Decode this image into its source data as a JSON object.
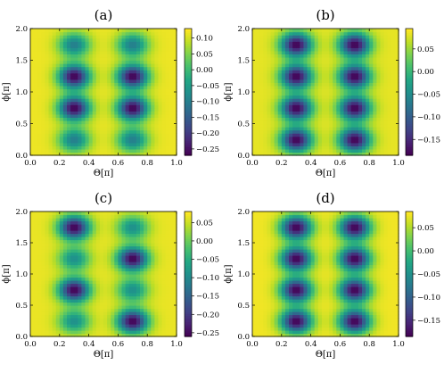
{
  "figure": {
    "colormap": "viridis",
    "panels": [
      {
        "title": "(a)"
      },
      {
        "title": "(b)"
      },
      {
        "title": "(c)"
      },
      {
        "title": "(d)"
      }
    ]
  },
  "chart_data": [
    {
      "type": "heatmap",
      "title": "(a)",
      "xlabel": "Θ[π]",
      "ylabel": "ϕ[π]",
      "xlim": [
        0.0,
        1.0
      ],
      "ylim": [
        0.0,
        2.0
      ],
      "xticks": [
        "0.0",
        "0.2",
        "0.4",
        "0.6",
        "0.8",
        "1.0"
      ],
      "yticks": [
        "0.0",
        "0.5",
        "1.0",
        "1.5",
        "2.0"
      ],
      "colorbar": {
        "min": -0.27,
        "max": 0.13,
        "ticks": [
          0.1,
          0.05,
          0.0,
          -0.05,
          -0.1,
          -0.15,
          -0.2,
          -0.25
        ],
        "tick_labels": [
          "0.10",
          "0.05",
          "0.00",
          "−0.05",
          "−0.10",
          "−0.15",
          "−0.20",
          "−0.25"
        ]
      },
      "field": {
        "background": 0.12,
        "blobs": [
          {
            "theta": 0.3,
            "phi": 0.25,
            "value": -0.1
          },
          {
            "theta": 0.7,
            "phi": 0.25,
            "value": -0.1
          },
          {
            "theta": 0.3,
            "phi": 0.75,
            "value": -0.27
          },
          {
            "theta": 0.7,
            "phi": 0.75,
            "value": -0.27
          },
          {
            "theta": 0.3,
            "phi": 1.25,
            "value": -0.27
          },
          {
            "theta": 0.7,
            "phi": 1.25,
            "value": -0.27
          },
          {
            "theta": 0.3,
            "phi": 1.75,
            "value": -0.1
          },
          {
            "theta": 0.7,
            "phi": 1.75,
            "value": -0.1
          }
        ]
      }
    },
    {
      "type": "heatmap",
      "title": "(b)",
      "xlabel": "Θ[π]",
      "ylabel": "ϕ[π]",
      "xlim": [
        0.0,
        1.0
      ],
      "ylim": [
        0.0,
        2.0
      ],
      "xticks": [
        "0.0",
        "0.2",
        "0.4",
        "0.6",
        "0.8",
        "1.0"
      ],
      "yticks": [
        "0.0",
        "0.5",
        "1.0",
        "1.5",
        "2.0"
      ],
      "colorbar": {
        "min": -0.185,
        "max": 0.095,
        "ticks": [
          0.05,
          0.0,
          -0.05,
          -0.1,
          -0.15
        ],
        "tick_labels": [
          "0.05",
          "0.00",
          "−0.05",
          "−0.10",
          "−0.15"
        ]
      },
      "field": {
        "background": 0.085,
        "blobs": [
          {
            "theta": 0.3,
            "phi": 0.25,
            "value": -0.185
          },
          {
            "theta": 0.7,
            "phi": 0.25,
            "value": -0.185
          },
          {
            "theta": 0.3,
            "phi": 0.75,
            "value": -0.185
          },
          {
            "theta": 0.7,
            "phi": 0.75,
            "value": -0.185
          },
          {
            "theta": 0.3,
            "phi": 1.25,
            "value": -0.185
          },
          {
            "theta": 0.7,
            "phi": 1.25,
            "value": -0.185
          },
          {
            "theta": 0.3,
            "phi": 1.75,
            "value": -0.185
          },
          {
            "theta": 0.7,
            "phi": 1.75,
            "value": -0.185
          }
        ]
      }
    },
    {
      "type": "heatmap",
      "title": "(c)",
      "xlabel": "Θ[π]",
      "ylabel": "ϕ[π]",
      "xlim": [
        0.0,
        1.0
      ],
      "ylim": [
        0.0,
        2.0
      ],
      "xticks": [
        "0.0",
        "0.2",
        "0.4",
        "0.6",
        "0.8",
        "1.0"
      ],
      "yticks": [
        "0.0",
        "0.5",
        "1.0",
        "1.5",
        "2.0"
      ],
      "colorbar": {
        "min": -0.26,
        "max": 0.08,
        "ticks": [
          0.05,
          0.0,
          -0.05,
          -0.1,
          -0.15,
          -0.2,
          -0.25
        ],
        "tick_labels": [
          "0.05",
          "0.00",
          "−0.05",
          "−0.10",
          "−0.15",
          "−0.20",
          "−0.25"
        ]
      },
      "field": {
        "background": 0.07,
        "blobs": [
          {
            "theta": 0.3,
            "phi": 0.25,
            "value": -0.09
          },
          {
            "theta": 0.7,
            "phi": 0.25,
            "value": -0.26
          },
          {
            "theta": 0.3,
            "phi": 0.75,
            "value": -0.26
          },
          {
            "theta": 0.7,
            "phi": 0.75,
            "value": -0.09
          },
          {
            "theta": 0.3,
            "phi": 1.25,
            "value": -0.09
          },
          {
            "theta": 0.7,
            "phi": 1.25,
            "value": -0.26
          },
          {
            "theta": 0.3,
            "phi": 1.75,
            "value": -0.26
          },
          {
            "theta": 0.7,
            "phi": 1.75,
            "value": -0.09
          }
        ]
      }
    },
    {
      "type": "heatmap",
      "title": "(d)",
      "xlabel": "Θ[π]",
      "ylabel": "ϕ[π]",
      "xlim": [
        0.0,
        1.0
      ],
      "ylim": [
        0.0,
        2.0
      ],
      "xticks": [
        "0.0",
        "0.2",
        "0.4",
        "0.6",
        "0.8",
        "1.0"
      ],
      "yticks": [
        "0.0",
        "0.5",
        "1.0",
        "1.5",
        "2.0"
      ],
      "colorbar": {
        "min": -0.185,
        "max": 0.085,
        "ticks": [
          0.05,
          0.0,
          -0.05,
          -0.1,
          -0.15
        ],
        "tick_labels": [
          "0.05",
          "0.00",
          "−0.05",
          "−0.10",
          "−0.15"
        ]
      },
      "field": {
        "background": 0.08,
        "blobs": [
          {
            "theta": 0.3,
            "phi": 0.25,
            "value": -0.185
          },
          {
            "theta": 0.7,
            "phi": 0.25,
            "value": -0.185
          },
          {
            "theta": 0.3,
            "phi": 0.75,
            "value": -0.185
          },
          {
            "theta": 0.7,
            "phi": 0.75,
            "value": -0.185
          },
          {
            "theta": 0.3,
            "phi": 1.25,
            "value": -0.185
          },
          {
            "theta": 0.7,
            "phi": 1.25,
            "value": -0.185
          },
          {
            "theta": 0.3,
            "phi": 1.75,
            "value": -0.185
          },
          {
            "theta": 0.7,
            "phi": 1.75,
            "value": -0.185
          }
        ]
      }
    }
  ]
}
